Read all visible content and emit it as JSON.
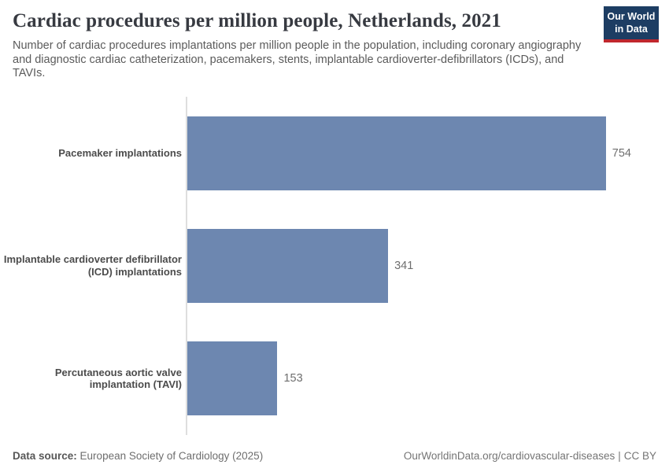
{
  "header": {
    "title": "Cardiac procedures per million people, Netherlands, 2021",
    "subtitle": "Number of cardiac procedures implantations per million people in the population, including coronary angiography and diagnostic cardiac catheterization, pacemakers, stents, implantable cardioverter-defibrillators (ICDs), and TAVIs.",
    "logo": {
      "line1": "Our World",
      "line2": "in Data",
      "bg_color": "#1d3d63",
      "accent_color": "#c0272d"
    }
  },
  "chart_data": {
    "type": "bar",
    "orientation": "horizontal",
    "title": "Cardiac procedures per million people, Netherlands, 2021",
    "categories": [
      "Pacemaker implantations",
      "Implantable cardioverter defibrillator (ICD) implantations",
      "Percutaneous aortic valve implantation (TAVI)"
    ],
    "values": [
      754,
      341,
      153
    ],
    "value_labels": [
      "754",
      "341",
      "153"
    ],
    "xmax": 754,
    "bar_color": "#6d87b0",
    "axis_color": "#dedede",
    "grid": false,
    "legend": "none"
  },
  "footer": {
    "datasource_label": "Data source:",
    "datasource_value": "European Society of Cardiology (2025)",
    "link": "OurWorldinData.org/cardiovascular-diseases",
    "separator": "|",
    "license": "CC BY"
  }
}
